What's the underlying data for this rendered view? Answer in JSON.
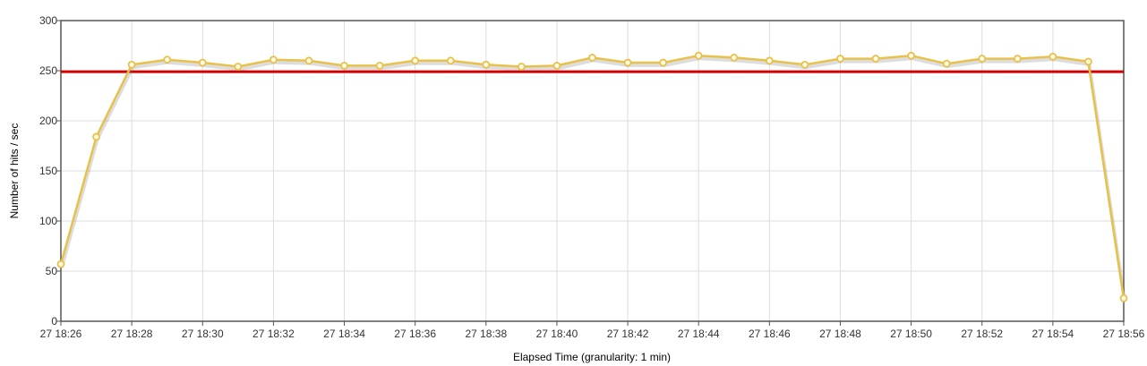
{
  "chart_data": {
    "type": "line",
    "xlabel": "Elapsed Time (granularity: 1 min)",
    "ylabel": "Number of hits / sec",
    "ylim": [
      0,
      300
    ],
    "y_ticks": [
      0,
      50,
      100,
      150,
      200,
      250,
      300
    ],
    "x_start": "18:26",
    "x_end": "18:56",
    "x_tick_labels": [
      "27 18:26",
      "27 18:28",
      "27 18:30",
      "27 18:32",
      "27 18:34",
      "27 18:36",
      "27 18:38",
      "27 18:40",
      "27 18:42",
      "27 18:44",
      "27 18:46",
      "27 18:48",
      "27 18:50",
      "27 18:52",
      "27 18:54",
      "27 18:56"
    ],
    "grid": true,
    "series": [
      {
        "color": "#e8c14a",
        "x": [
          "18:26",
          "18:27",
          "18:28",
          "18:29",
          "18:30",
          "18:31",
          "18:32",
          "18:33",
          "18:34",
          "18:35",
          "18:36",
          "18:37",
          "18:38",
          "18:39",
          "18:40",
          "18:41",
          "18:42",
          "18:43",
          "18:44",
          "18:45",
          "18:46",
          "18:47",
          "18:48",
          "18:49",
          "18:50",
          "18:51",
          "18:52",
          "18:53",
          "18:54",
          "18:55",
          "18:56"
        ],
        "values": [
          57,
          184,
          256,
          261,
          258,
          254,
          261,
          260,
          255,
          255,
          260,
          260,
          256,
          254,
          255,
          263,
          258,
          258,
          265,
          263,
          260,
          256,
          262,
          262,
          265,
          257,
          262,
          262,
          264,
          259,
          23
        ]
      }
    ],
    "threshold": {
      "value": 249,
      "color": "#d40000"
    }
  }
}
